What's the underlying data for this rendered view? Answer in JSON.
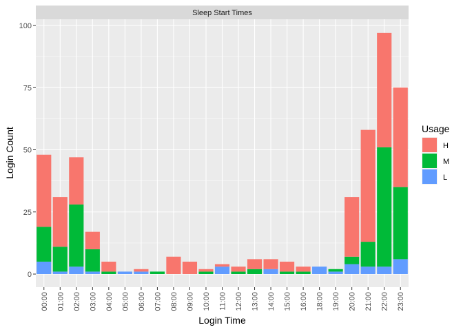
{
  "chart_data": {
    "type": "bar",
    "stacked": true,
    "facet_title": "Sleep Start Times",
    "xlabel": "Login Time",
    "ylabel": "Login Count",
    "ylim": [
      0,
      105
    ],
    "yticks": [
      0,
      25,
      50,
      75,
      100
    ],
    "grid": true,
    "legend": {
      "title": "Usage",
      "position": "right",
      "order": [
        "H",
        "M",
        "L"
      ]
    },
    "colors": {
      "H": "#F8766D",
      "M": "#00BA38",
      "L": "#619CFF"
    },
    "categories": [
      "00:00",
      "01:00",
      "02:00",
      "03:00",
      "04:00",
      "05:00",
      "06:00",
      "07:00",
      "08:00",
      "09:00",
      "10:00",
      "11:00",
      "12:00",
      "13:00",
      "14:00",
      "15:00",
      "16:00",
      "18:00",
      "19:00",
      "20:00",
      "21:00",
      "22:00",
      "23:00"
    ],
    "series": [
      {
        "name": "L",
        "values": [
          5,
          1,
          3,
          1,
          0,
          1,
          1,
          0,
          0,
          0,
          0,
          3,
          0,
          0,
          2,
          0,
          0,
          3,
          1,
          4,
          3,
          3,
          6
        ]
      },
      {
        "name": "M",
        "values": [
          14,
          10,
          25,
          9,
          1,
          0,
          0,
          1,
          0,
          0,
          1,
          0,
          1,
          2,
          0,
          1,
          1,
          0,
          1,
          3,
          10,
          48,
          29
        ]
      },
      {
        "name": "H",
        "values": [
          29,
          20,
          19,
          7,
          4,
          0,
          1,
          0,
          7,
          5,
          1,
          1,
          2,
          4,
          4,
          4,
          2,
          0,
          0,
          24,
          45,
          46,
          40
        ]
      }
    ]
  }
}
